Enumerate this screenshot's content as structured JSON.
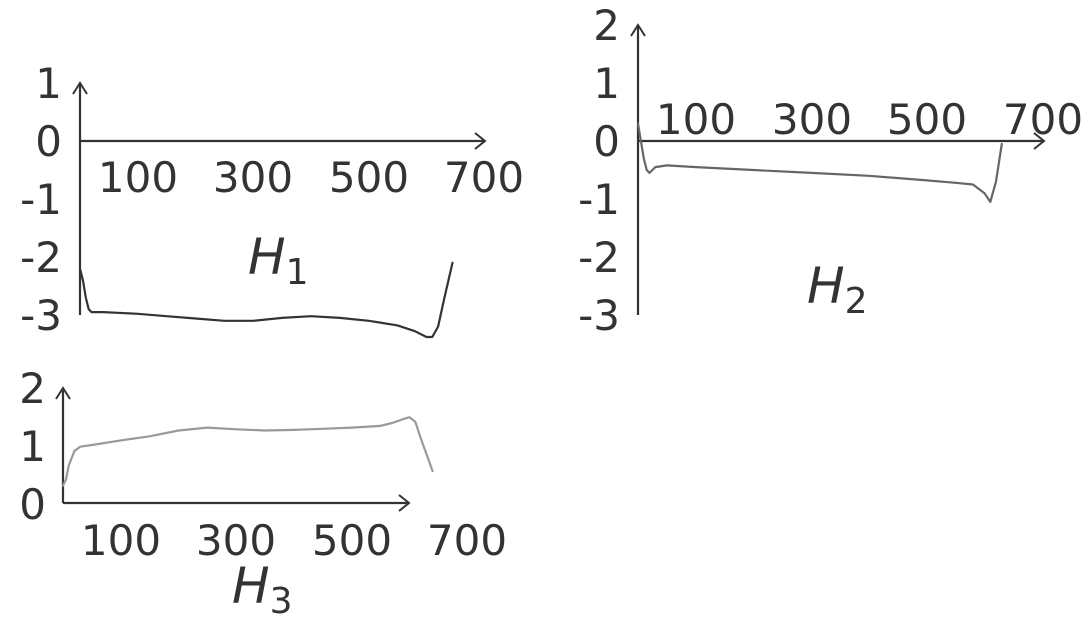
{
  "chart_data": [
    {
      "type": "line",
      "title": "H",
      "title_subscript": "1",
      "xlim": [
        0,
        700
      ],
      "ylim": [
        -3,
        1
      ],
      "x_ticks": [
        "100",
        "300",
        "500",
        "700"
      ],
      "y_ticks": [
        "1",
        "0",
        "-1",
        "-2",
        "-3"
      ],
      "grid": false,
      "color": "#333333",
      "x": [
        0,
        5,
        10,
        15,
        20,
        40,
        100,
        150,
        200,
        250,
        300,
        350,
        400,
        450,
        500,
        550,
        580,
        600,
        610,
        620,
        630,
        645
      ],
      "y": [
        -2.2,
        -2.4,
        -2.7,
        -2.9,
        -2.95,
        -2.95,
        -2.98,
        -3.02,
        -3.06,
        -3.1,
        -3.1,
        -3.05,
        -3.02,
        -3.05,
        -3.1,
        -3.18,
        -3.28,
        -3.38,
        -3.38,
        -3.2,
        -2.75,
        -2.1
      ]
    },
    {
      "type": "line",
      "title": "H",
      "title_subscript": "2",
      "xlim": [
        0,
        700
      ],
      "ylim": [
        -3,
        2
      ],
      "x_ticks": [
        "100",
        "300",
        "500",
        "700"
      ],
      "y_ticks": [
        "2",
        "1",
        "0",
        "-1",
        "-2",
        "-3"
      ],
      "grid": false,
      "color": "#666666",
      "x": [
        0,
        5,
        10,
        15,
        20,
        30,
        50,
        100,
        200,
        300,
        400,
        500,
        550,
        580,
        600,
        610,
        620,
        630
      ],
      "y": [
        0.3,
        0,
        -0.3,
        -0.5,
        -0.55,
        -0.45,
        -0.42,
        -0.45,
        -0.5,
        -0.55,
        -0.6,
        -0.68,
        -0.72,
        -0.75,
        -0.9,
        -1.05,
        -0.7,
        -0.05
      ]
    },
    {
      "type": "line",
      "title": "H",
      "title_subscript": "3",
      "xlim": [
        0,
        700
      ],
      "ylim": [
        0,
        2
      ],
      "x_ticks": [
        "100",
        "300",
        "500",
        "700"
      ],
      "y_ticks": [
        "2",
        "1",
        "0"
      ],
      "grid": false,
      "color": "#999999",
      "x": [
        0,
        5,
        10,
        20,
        30,
        50,
        100,
        150,
        200,
        250,
        300,
        350,
        400,
        450,
        500,
        550,
        570,
        590,
        600,
        610,
        620,
        640
      ],
      "y": [
        0.3,
        0.4,
        0.65,
        0.9,
        0.97,
        1.0,
        1.08,
        1.15,
        1.25,
        1.3,
        1.27,
        1.25,
        1.26,
        1.28,
        1.3,
        1.33,
        1.38,
        1.45,
        1.48,
        1.4,
        1.1,
        0.55
      ]
    }
  ]
}
